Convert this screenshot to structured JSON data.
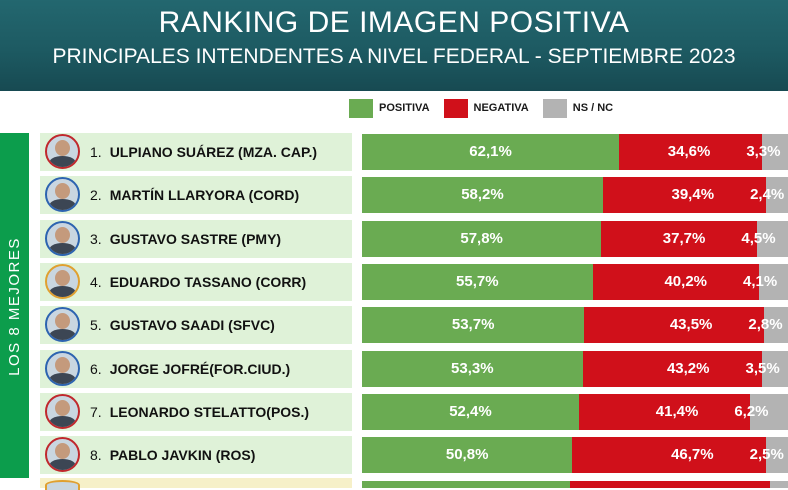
{
  "header": {
    "title": "RANKING DE IMAGEN POSITIVA",
    "subtitle": "PRINCIPALES INTENDENTES A NIVEL FEDERAL - SEPTIEMBRE 2023"
  },
  "legend": [
    {
      "label": "POSITIVA",
      "color": "#6aab52"
    },
    {
      "label": "NEGATIVA",
      "color": "#d0101a"
    },
    {
      "label": "NS / NC",
      "color": "#b3b3b3"
    }
  ],
  "side_label": "LOS 8 MEJORES",
  "colors": {
    "positive": "#6aab52",
    "negative": "#d0101a",
    "nsnc": "#b3b3b3",
    "band": "#0c9d4c",
    "row_bg": "#dff2d8"
  },
  "chart_data": {
    "type": "bar",
    "stacked": true,
    "orientation": "horizontal",
    "title": "RANKING DE IMAGEN POSITIVA",
    "subtitle": "PRINCIPALES INTENDENTES A NIVEL FEDERAL - SEPTIEMBRE 2023",
    "categories": [
      "ULPIANO SUÁREZ (MZA. CAP.)",
      "MARTÍN LLARYORA (CORD)",
      "GUSTAVO SASTRE (PMY)",
      "EDUARDO TASSANO (CORR)",
      "GUSTAVO SAADI (SFVC)",
      "JORGE JOFRÉ(FOR.CIUD.)",
      "LEONARDO STELATTO(POS.)",
      "PABLO JAVKIN (ROS)"
    ],
    "ranks": [
      "1.",
      "2.",
      "3.",
      "4.",
      "5.",
      "6.",
      "7.",
      "8."
    ],
    "series": [
      {
        "name": "POSITIVA",
        "values": [
          62.1,
          58.2,
          57.8,
          55.7,
          53.7,
          53.3,
          52.4,
          50.8
        ],
        "labels": [
          "62,1%",
          "58,2%",
          "57,8%",
          "55,7%",
          "53,7%",
          "53,3%",
          "52,4%",
          "50,8%"
        ]
      },
      {
        "name": "NEGATIVA",
        "values": [
          34.6,
          39.4,
          37.7,
          40.2,
          43.5,
          43.2,
          41.4,
          46.7
        ],
        "labels": [
          "34,6%",
          "39,4%",
          "37,7%",
          "40,2%",
          "43,5%",
          "43,2%",
          "41,4%",
          "46,7%"
        ]
      },
      {
        "name": "NS / NC",
        "values": [
          3.3,
          2.4,
          4.5,
          4.1,
          2.8,
          3.5,
          6.2,
          2.5
        ],
        "labels": [
          "3,3%",
          "2,4%",
          "4,5%",
          "4,1%",
          "2,8%",
          "3,5%",
          "6,2%",
          "2,5%"
        ]
      }
    ],
    "xlim": [
      0,
      100
    ],
    "legend_position": "top",
    "grid": false
  }
}
